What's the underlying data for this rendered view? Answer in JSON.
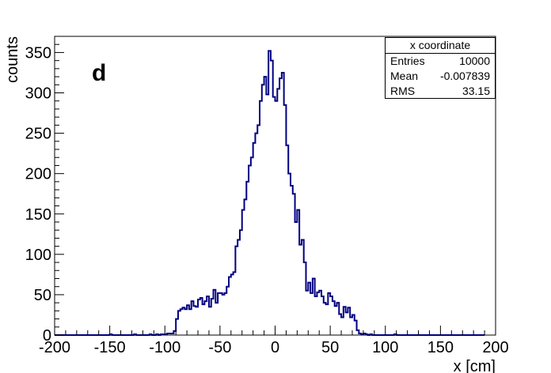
{
  "panel_label": "d",
  "stats": {
    "title": "x coordinate",
    "rows": [
      {
        "label": "Entries",
        "value": "10000"
      },
      {
        "label": "Mean",
        "value": "-0.007839"
      },
      {
        "label": "RMS",
        "value": "33.15"
      }
    ]
  },
  "colors": {
    "line": "#000080",
    "axis": "#000000",
    "background": "#ffffff"
  },
  "chart_data": {
    "type": "histogram",
    "title": "",
    "xlabel": "x [cm]",
    "ylabel": "counts",
    "xlim": [
      -200,
      200
    ],
    "ylim": [
      0,
      370
    ],
    "bin_width": 2,
    "x_ticks": [
      -200,
      -150,
      -100,
      -50,
      0,
      50,
      100,
      150,
      200
    ],
    "x_tick_labels": [
      "-200",
      "-150",
      "-100",
      "-50",
      "0",
      "50",
      "100",
      "150",
      "200"
    ],
    "y_ticks": [
      0,
      50,
      100,
      150,
      200,
      250,
      300,
      350
    ],
    "y_tick_labels": [
      "0",
      "50",
      "100",
      "150",
      "200",
      "250",
      "300",
      "350"
    ],
    "series": [
      {
        "bin_edges_start": -200,
        "values": [
          0,
          0,
          0,
          0,
          0,
          0,
          0,
          0,
          0,
          0,
          0,
          0,
          0,
          0,
          0,
          0,
          0,
          0,
          0,
          0,
          0,
          0,
          0,
          0,
          0,
          1,
          0,
          0,
          0,
          0,
          0,
          0,
          0,
          0,
          0,
          0,
          1,
          0,
          0,
          0,
          0,
          0,
          0,
          1,
          0,
          0,
          1,
          0,
          1,
          1,
          1,
          2,
          2,
          2,
          5,
          20,
          30,
          32,
          34,
          32,
          37,
          32,
          42,
          36,
          35,
          44,
          46,
          38,
          42,
          48,
          35,
          45,
          56,
          40,
          52,
          52,
          50,
          52,
          60,
          72,
          75,
          78,
          110,
          118,
          130,
          155,
          168,
          190,
          210,
          220,
          238,
          250,
          260,
          290,
          310,
          320,
          298,
          352,
          340,
          295,
          290,
          305,
          318,
          325,
          285,
          235,
          200,
          185,
          175,
          140,
          155,
          112,
          118,
          90,
          55,
          65,
          52,
          70,
          48,
          53,
          55,
          48,
          40,
          38,
          52,
          48,
          42,
          36,
          40,
          26,
          22,
          35,
          28,
          34,
          22,
          25,
          18,
          6,
          2,
          1,
          2,
          1,
          0,
          1,
          0,
          0,
          0,
          0,
          0,
          0,
          0,
          0,
          0,
          0,
          1,
          0,
          0,
          0,
          0,
          0,
          0,
          0,
          0,
          0,
          0,
          0,
          0,
          0,
          0,
          0,
          0,
          0,
          0,
          0,
          0,
          0,
          0,
          0,
          0,
          0,
          0,
          0,
          0,
          0,
          0,
          0,
          0,
          0,
          0,
          0,
          0,
          0,
          0,
          0,
          0
        ]
      }
    ],
    "grid": false,
    "legend": "none"
  }
}
